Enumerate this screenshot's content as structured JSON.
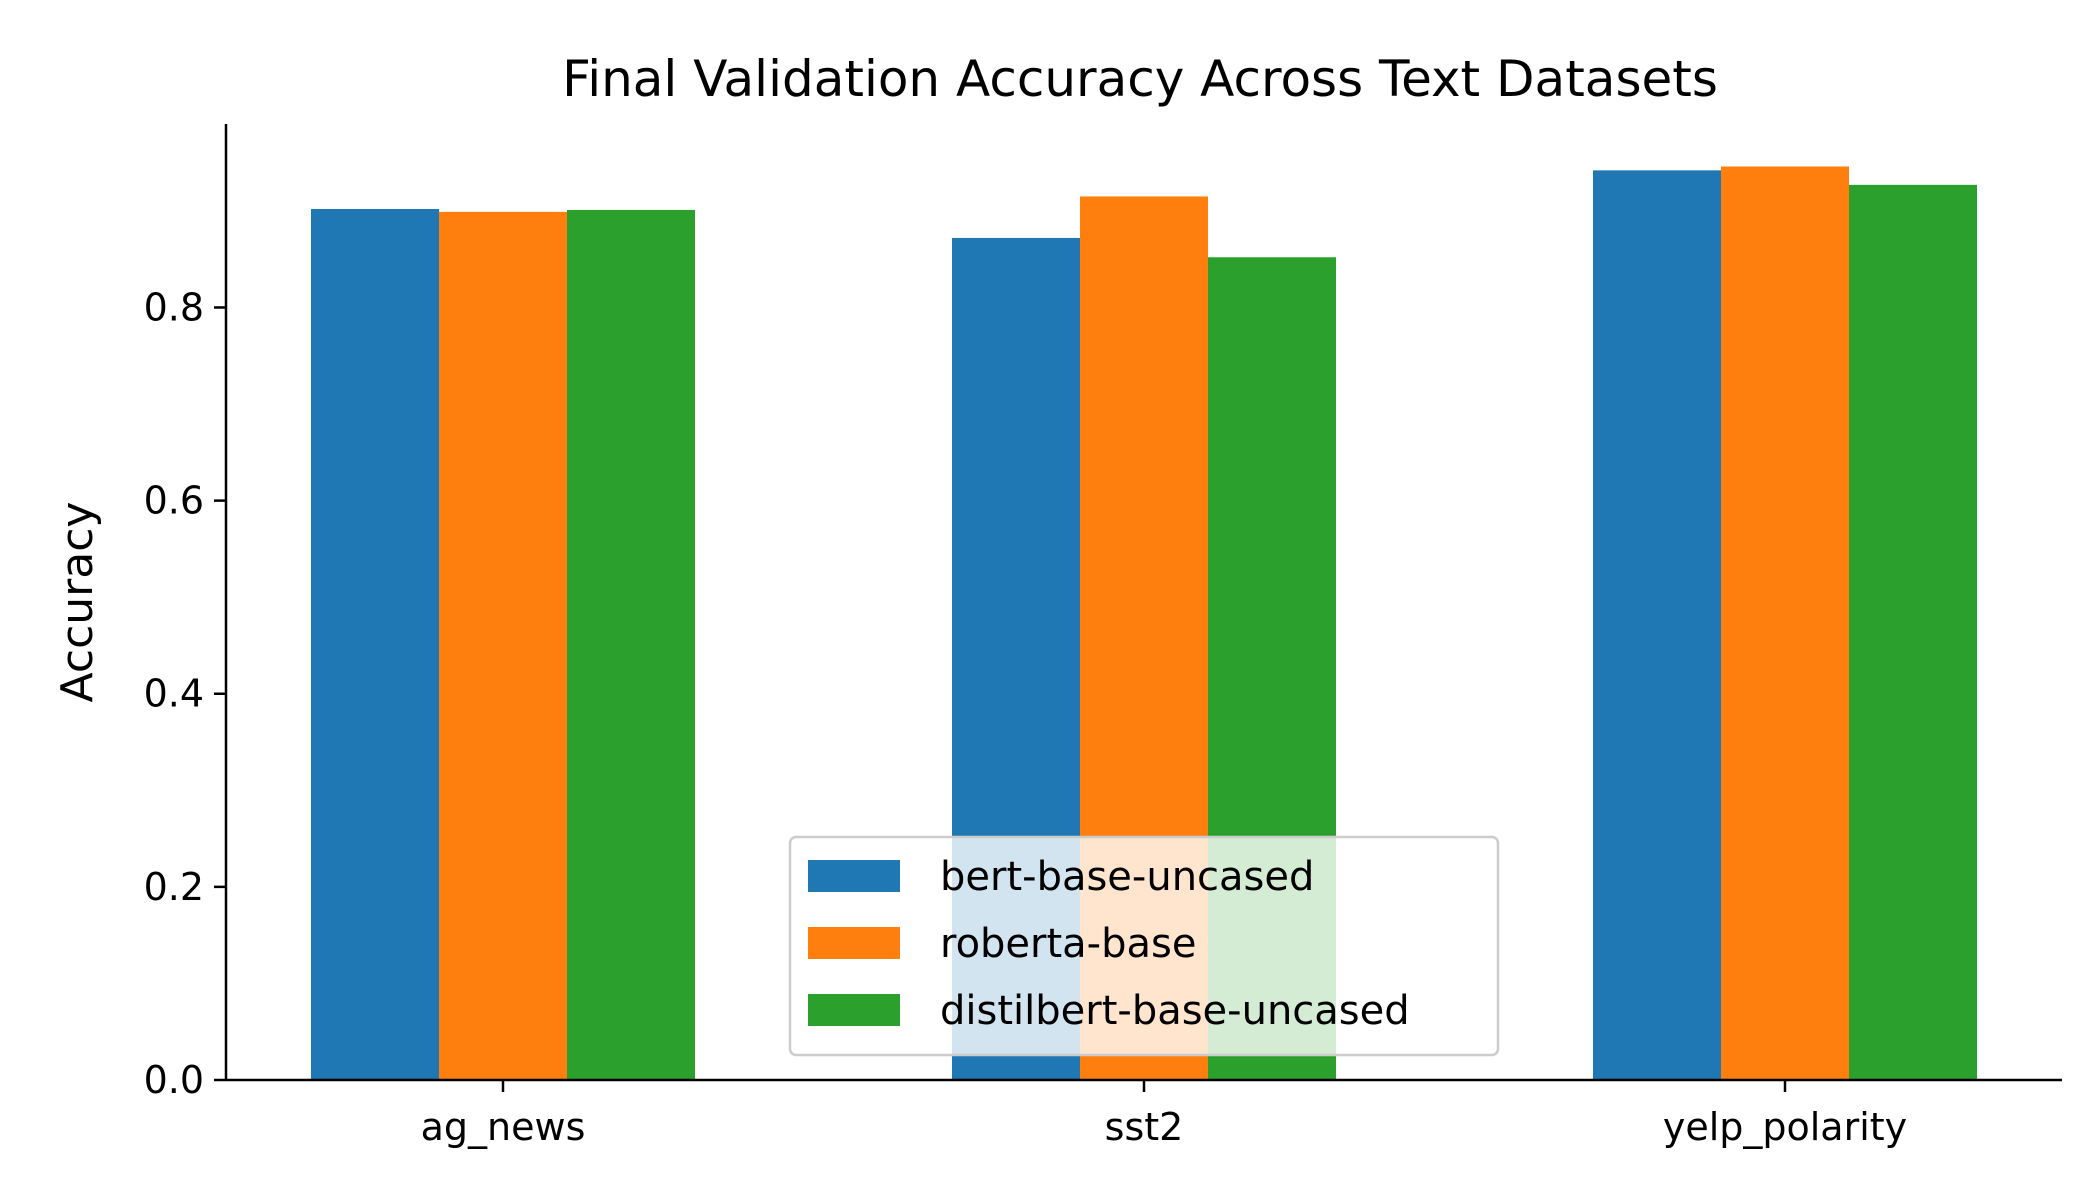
{
  "chart_data": {
    "type": "bar",
    "title": "Final Validation Accuracy Across Text Datasets",
    "xlabel": "",
    "ylabel": "Accuracy",
    "categories": [
      "ag_news",
      "sst2",
      "yelp_polarity"
    ],
    "series": [
      {
        "name": "bert-base-uncased",
        "values": [
          0.902,
          0.872,
          0.942
        ],
        "color": "#1f77b4"
      },
      {
        "name": "roberta-base",
        "values": [
          0.899,
          0.915,
          0.946
        ],
        "color": "#ff7f0e"
      },
      {
        "name": "distilbert-base-uncased",
        "values": [
          0.901,
          0.852,
          0.927
        ],
        "color": "#2ca02c"
      }
    ],
    "ylim": [
      0,
      0.99
    ],
    "yticks": [
      0.0,
      0.2,
      0.4,
      0.6,
      0.8
    ],
    "ytick_labels": [
      "0.0",
      "0.2",
      "0.4",
      "0.6",
      "0.8"
    ],
    "grid": false,
    "legend_position": "lower-center"
  }
}
